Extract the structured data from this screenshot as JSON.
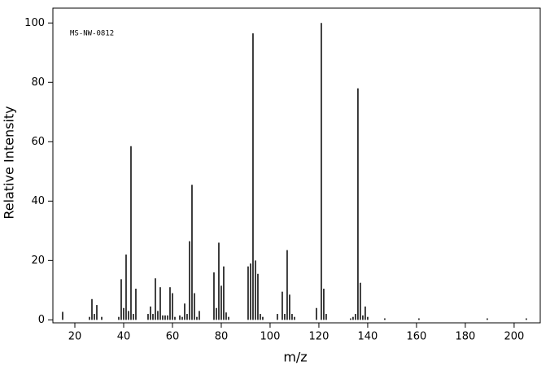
{
  "chart_data": {
    "type": "bar",
    "annotation": "MS-NW-0812",
    "x_label": "m/z",
    "y_label": "Relative Intensity",
    "x": [
      15,
      26,
      27,
      28,
      29,
      31,
      38,
      39,
      40,
      41,
      42,
      43,
      44,
      45,
      50,
      51,
      52,
      53,
      54,
      55,
      56,
      57,
      58,
      59,
      60,
      61,
      63,
      64,
      65,
      66,
      67,
      68,
      69,
      70,
      71,
      77,
      78,
      79,
      80,
      81,
      82,
      83,
      91,
      92,
      93,
      94,
      95,
      96,
      97,
      103,
      105,
      106,
      107,
      108,
      109,
      110,
      119,
      121,
      122,
      123,
      133,
      134,
      135,
      136,
      137,
      138,
      139,
      140,
      147,
      161,
      189,
      205
    ],
    "values": [
      2.7,
      1,
      7,
      2,
      5,
      1,
      1,
      13.7,
      4,
      22,
      3,
      58.5,
      2,
      10.5,
      2,
      4.5,
      2,
      14,
      3,
      11,
      1.5,
      1.5,
      1.5,
      11,
      9,
      1,
      1.5,
      1,
      5.5,
      2,
      26.5,
      45.5,
      9,
      1,
      3,
      16,
      4,
      26,
      11.5,
      18,
      2.5,
      1,
      18,
      19,
      96.5,
      20,
      15.5,
      2,
      1,
      2,
      9.5,
      2,
      23.5,
      8.5,
      2,
      1,
      4,
      100,
      10.5,
      2,
      0.5,
      1,
      2,
      78,
      12.5,
      1.5,
      4.5,
      1,
      0.5,
      0.5,
      0.5,
      0.5
    ],
    "color": "#000000",
    "xlim": [
      11,
      210.7
    ],
    "ylim": [
      -1,
      105
    ],
    "xticks": [
      20,
      40,
      60,
      80,
      100,
      120,
      140,
      160,
      180,
      200
    ],
    "yticks": [
      0,
      20,
      40,
      60,
      80,
      100
    ],
    "grid": false
  }
}
